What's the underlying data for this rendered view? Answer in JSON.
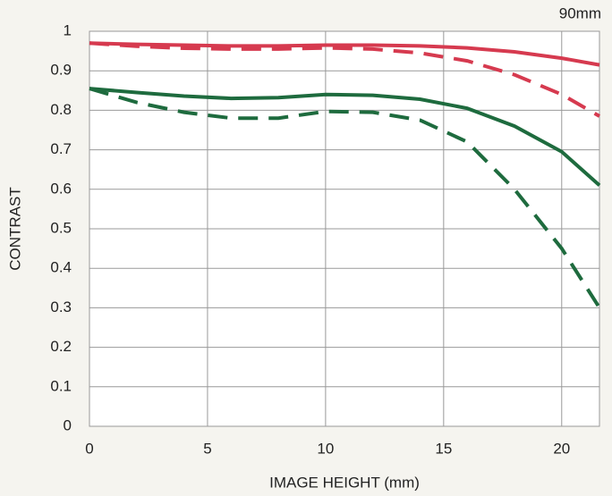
{
  "chart_data": {
    "type": "line",
    "title": "90mm",
    "x_label": "IMAGE HEIGHT (mm)",
    "y_label": "CONTRAST",
    "x": [
      0,
      2,
      4,
      6,
      8,
      10,
      12,
      14,
      16,
      18,
      20,
      21.6
    ],
    "series": [
      {
        "color": "#d63a4f",
        "dashed": false,
        "values": [
          0.97,
          0.967,
          0.965,
          0.963,
          0.963,
          0.965,
          0.965,
          0.963,
          0.958,
          0.948,
          0.932,
          0.915
        ]
      },
      {
        "color": "#d63a4f",
        "dashed": true,
        "values": [
          0.97,
          0.962,
          0.957,
          0.955,
          0.955,
          0.958,
          0.955,
          0.945,
          0.925,
          0.89,
          0.84,
          0.785
        ]
      },
      {
        "color": "#1e6b3e",
        "dashed": false,
        "values": [
          0.855,
          0.845,
          0.836,
          0.83,
          0.832,
          0.84,
          0.838,
          0.828,
          0.805,
          0.76,
          0.695,
          0.61
        ]
      },
      {
        "color": "#1e6b3e",
        "dashed": true,
        "values": [
          0.855,
          0.82,
          0.795,
          0.78,
          0.78,
          0.797,
          0.795,
          0.775,
          0.72,
          0.6,
          0.45,
          0.3
        ]
      }
    ],
    "xlim": [
      0,
      21.6
    ],
    "xticks": [
      0,
      5,
      10,
      15,
      20
    ],
    "ylim": [
      0,
      1
    ],
    "yticks": [
      0,
      0.1,
      0.2,
      0.3,
      0.4,
      0.5,
      0.6,
      0.7,
      0.8,
      0.9,
      1
    ],
    "grid": true
  }
}
